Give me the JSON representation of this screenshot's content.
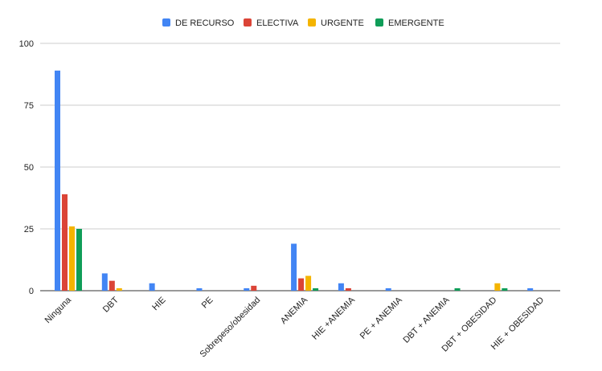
{
  "chart_data": {
    "type": "bar",
    "title": "",
    "xlabel": "",
    "ylabel": "",
    "ylim": [
      0,
      100
    ],
    "yticks": [
      0,
      25,
      50,
      75,
      100
    ],
    "grid": true,
    "legend_position": "top-center",
    "categories": [
      "Ninguna",
      "DBT",
      "HIE",
      "PE",
      "Sobrepeso/obesidad",
      "ANEMIA",
      "HIE +ANEMIA",
      "PE + ANEMIA",
      "DBT + ANEMIA",
      "DBT + OBESIDAD",
      "HIE + OBESIDAD"
    ],
    "series": [
      {
        "name": "DE RECURSO",
        "color": "#4285f4",
        "values": [
          89,
          7,
          3,
          1,
          1,
          19,
          3,
          1,
          0,
          0,
          1
        ]
      },
      {
        "name": "ELECTIVA",
        "color": "#db4437",
        "values": [
          39,
          4,
          0,
          0,
          2,
          5,
          1,
          0,
          0,
          0,
          0
        ]
      },
      {
        "name": "URGENTE",
        "color": "#f4b400",
        "values": [
          26,
          1,
          0,
          0,
          0,
          6,
          0,
          0,
          0,
          3,
          0
        ]
      },
      {
        "name": "EMERGENTE",
        "color": "#0f9d58",
        "values": [
          25,
          0,
          0,
          0,
          0,
          1,
          0,
          0,
          1,
          1,
          0
        ]
      }
    ]
  }
}
